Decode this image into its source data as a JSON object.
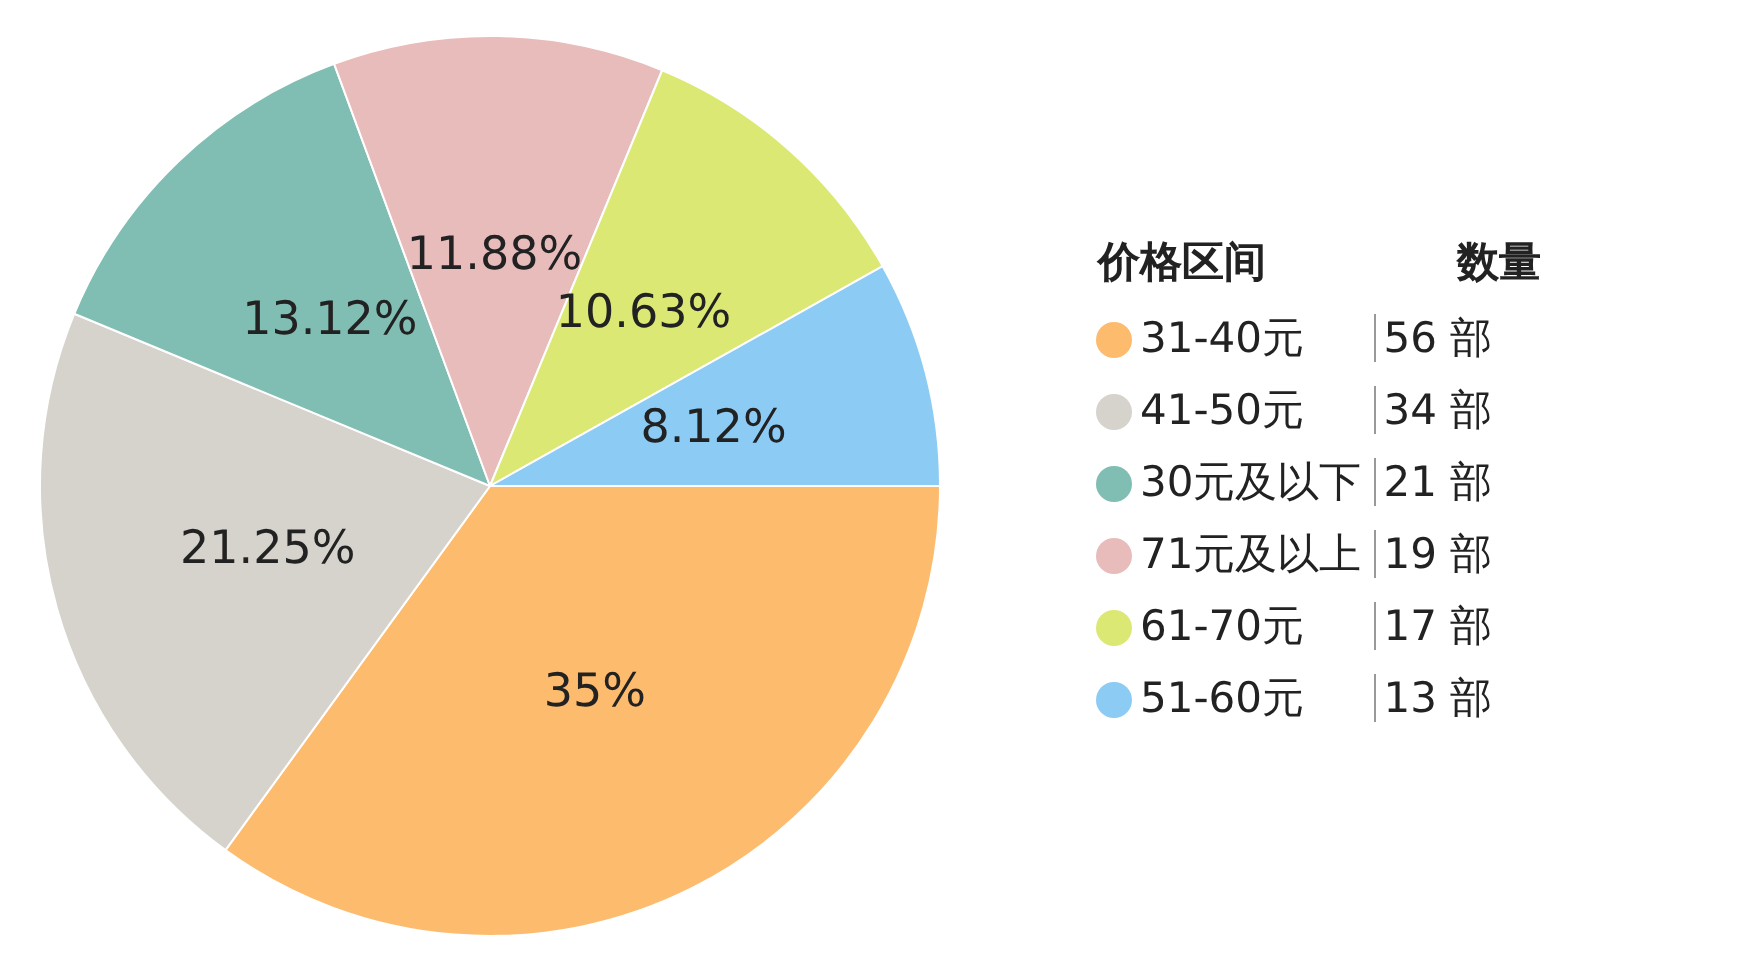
{
  "chart_data": {
    "type": "pie",
    "categories": [
      "31-40元",
      "41-50元",
      "30元及以下",
      "71元及以上",
      "61-70元",
      "51-60元"
    ],
    "values": [
      35,
      21.25,
      13.12,
      11.88,
      10.63,
      8.12
    ],
    "colors": [
      "#fdbb6e",
      "#d6d2cc",
      "#80bdb2",
      "#e8bcbb",
      "#dce874",
      "#8ccbf4"
    ],
    "value_labels": [
      "35%",
      "21.25%",
      "13.12%",
      "11.88%",
      "10.63%",
      "8.12%"
    ],
    "legend_title": "价格区间",
    "legend": "right",
    "annotations": [
      "数量",
      "56 部",
      "34 部",
      "21 部",
      "19 部",
      "17 部",
      "13 部"
    ]
  }
}
